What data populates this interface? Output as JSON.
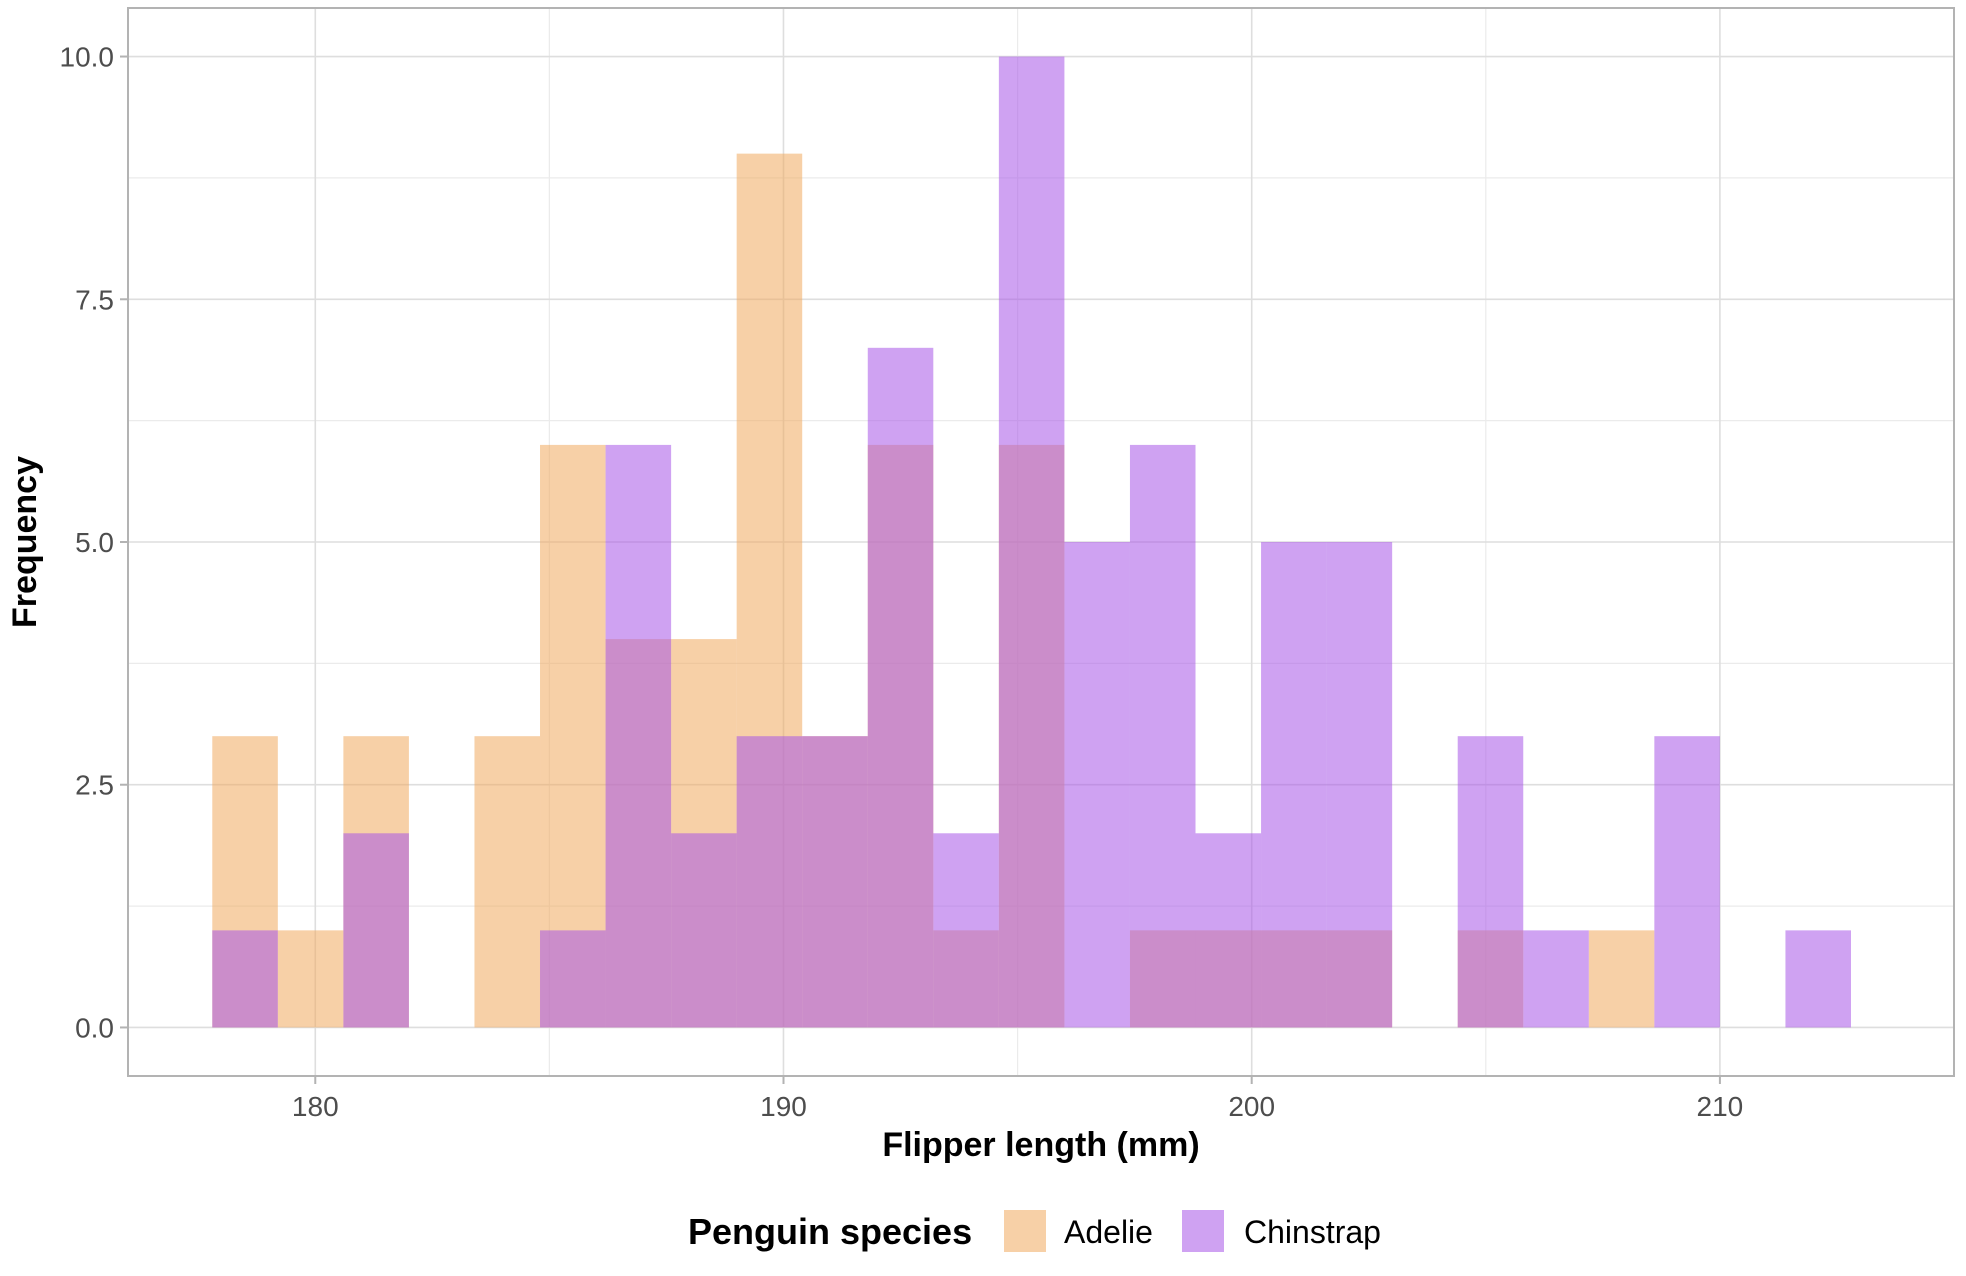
{
  "chart_data": {
    "type": "bar",
    "subtype": "overlapping histogram",
    "title": "",
    "xlabel": "Flipper length (mm)",
    "ylabel": "Frequency",
    "xlim": [
      176,
      215
    ],
    "ylim": [
      -0.5,
      10.5
    ],
    "x_ticks": [
      180,
      190,
      200,
      210
    ],
    "x_tick_labels": [
      "180",
      "190",
      "200",
      "210"
    ],
    "y_ticks": [
      0,
      2.5,
      5,
      7.5,
      10
    ],
    "y_tick_labels": [
      "0.0",
      "2.5",
      "5.0",
      "7.5",
      "10.0"
    ],
    "grid": true,
    "legend": {
      "title": "Penguin species",
      "position": "bottom"
    },
    "series": [
      {
        "name": "Adelie",
        "color": "#F0A95E",
        "bins": [
          {
            "x0": 177.8,
            "x1": 179.2,
            "count": 3
          },
          {
            "x0": 179.2,
            "x1": 180.6,
            "count": 1
          },
          {
            "x0": 180.6,
            "x1": 182.0,
            "count": 3
          },
          {
            "x0": 183.4,
            "x1": 184.8,
            "count": 3
          },
          {
            "x0": 184.8,
            "x1": 186.2,
            "count": 6
          },
          {
            "x0": 186.2,
            "x1": 187.6,
            "count": 4
          },
          {
            "x0": 187.6,
            "x1": 189.0,
            "count": 4
          },
          {
            "x0": 189.0,
            "x1": 190.4,
            "count": 9
          },
          {
            "x0": 190.4,
            "x1": 191.8,
            "count": 3
          },
          {
            "x0": 191.8,
            "x1": 193.2,
            "count": 6
          },
          {
            "x0": 193.2,
            "x1": 194.6,
            "count": 1
          },
          {
            "x0": 194.6,
            "x1": 196.0,
            "count": 6
          },
          {
            "x0": 197.4,
            "x1": 198.8,
            "count": 1
          },
          {
            "x0": 198.8,
            "x1": 200.2,
            "count": 1
          },
          {
            "x0": 200.2,
            "x1": 201.6,
            "count": 1
          },
          {
            "x0": 201.6,
            "x1": 203.0,
            "count": 1
          },
          {
            "x0": 204.4,
            "x1": 205.8,
            "count": 1
          },
          {
            "x0": 207.2,
            "x1": 208.6,
            "count": 1
          }
        ]
      },
      {
        "name": "Chinstrap",
        "color": "#A855E8",
        "bins": [
          {
            "x0": 177.8,
            "x1": 179.2,
            "count": 1
          },
          {
            "x0": 180.6,
            "x1": 182.0,
            "count": 2
          },
          {
            "x0": 184.8,
            "x1": 186.2,
            "count": 1
          },
          {
            "x0": 186.2,
            "x1": 187.6,
            "count": 6
          },
          {
            "x0": 187.6,
            "x1": 189.0,
            "count": 2
          },
          {
            "x0": 189.0,
            "x1": 190.4,
            "count": 3
          },
          {
            "x0": 190.4,
            "x1": 191.8,
            "count": 3
          },
          {
            "x0": 191.8,
            "x1": 193.2,
            "count": 7
          },
          {
            "x0": 193.2,
            "x1": 194.6,
            "count": 2
          },
          {
            "x0": 194.6,
            "x1": 196.0,
            "count": 10
          },
          {
            "x0": 196.0,
            "x1": 197.4,
            "count": 5
          },
          {
            "x0": 197.4,
            "x1": 198.8,
            "count": 6
          },
          {
            "x0": 198.8,
            "x1": 200.2,
            "count": 2
          },
          {
            "x0": 200.2,
            "x1": 201.6,
            "count": 5
          },
          {
            "x0": 201.6,
            "x1": 203.0,
            "count": 5
          },
          {
            "x0": 204.4,
            "x1": 205.8,
            "count": 3
          },
          {
            "x0": 205.8,
            "x1": 207.2,
            "count": 1
          },
          {
            "x0": 208.6,
            "x1": 210.0,
            "count": 3
          },
          {
            "x0": 211.4,
            "x1": 212.8,
            "count": 1
          }
        ]
      }
    ]
  }
}
